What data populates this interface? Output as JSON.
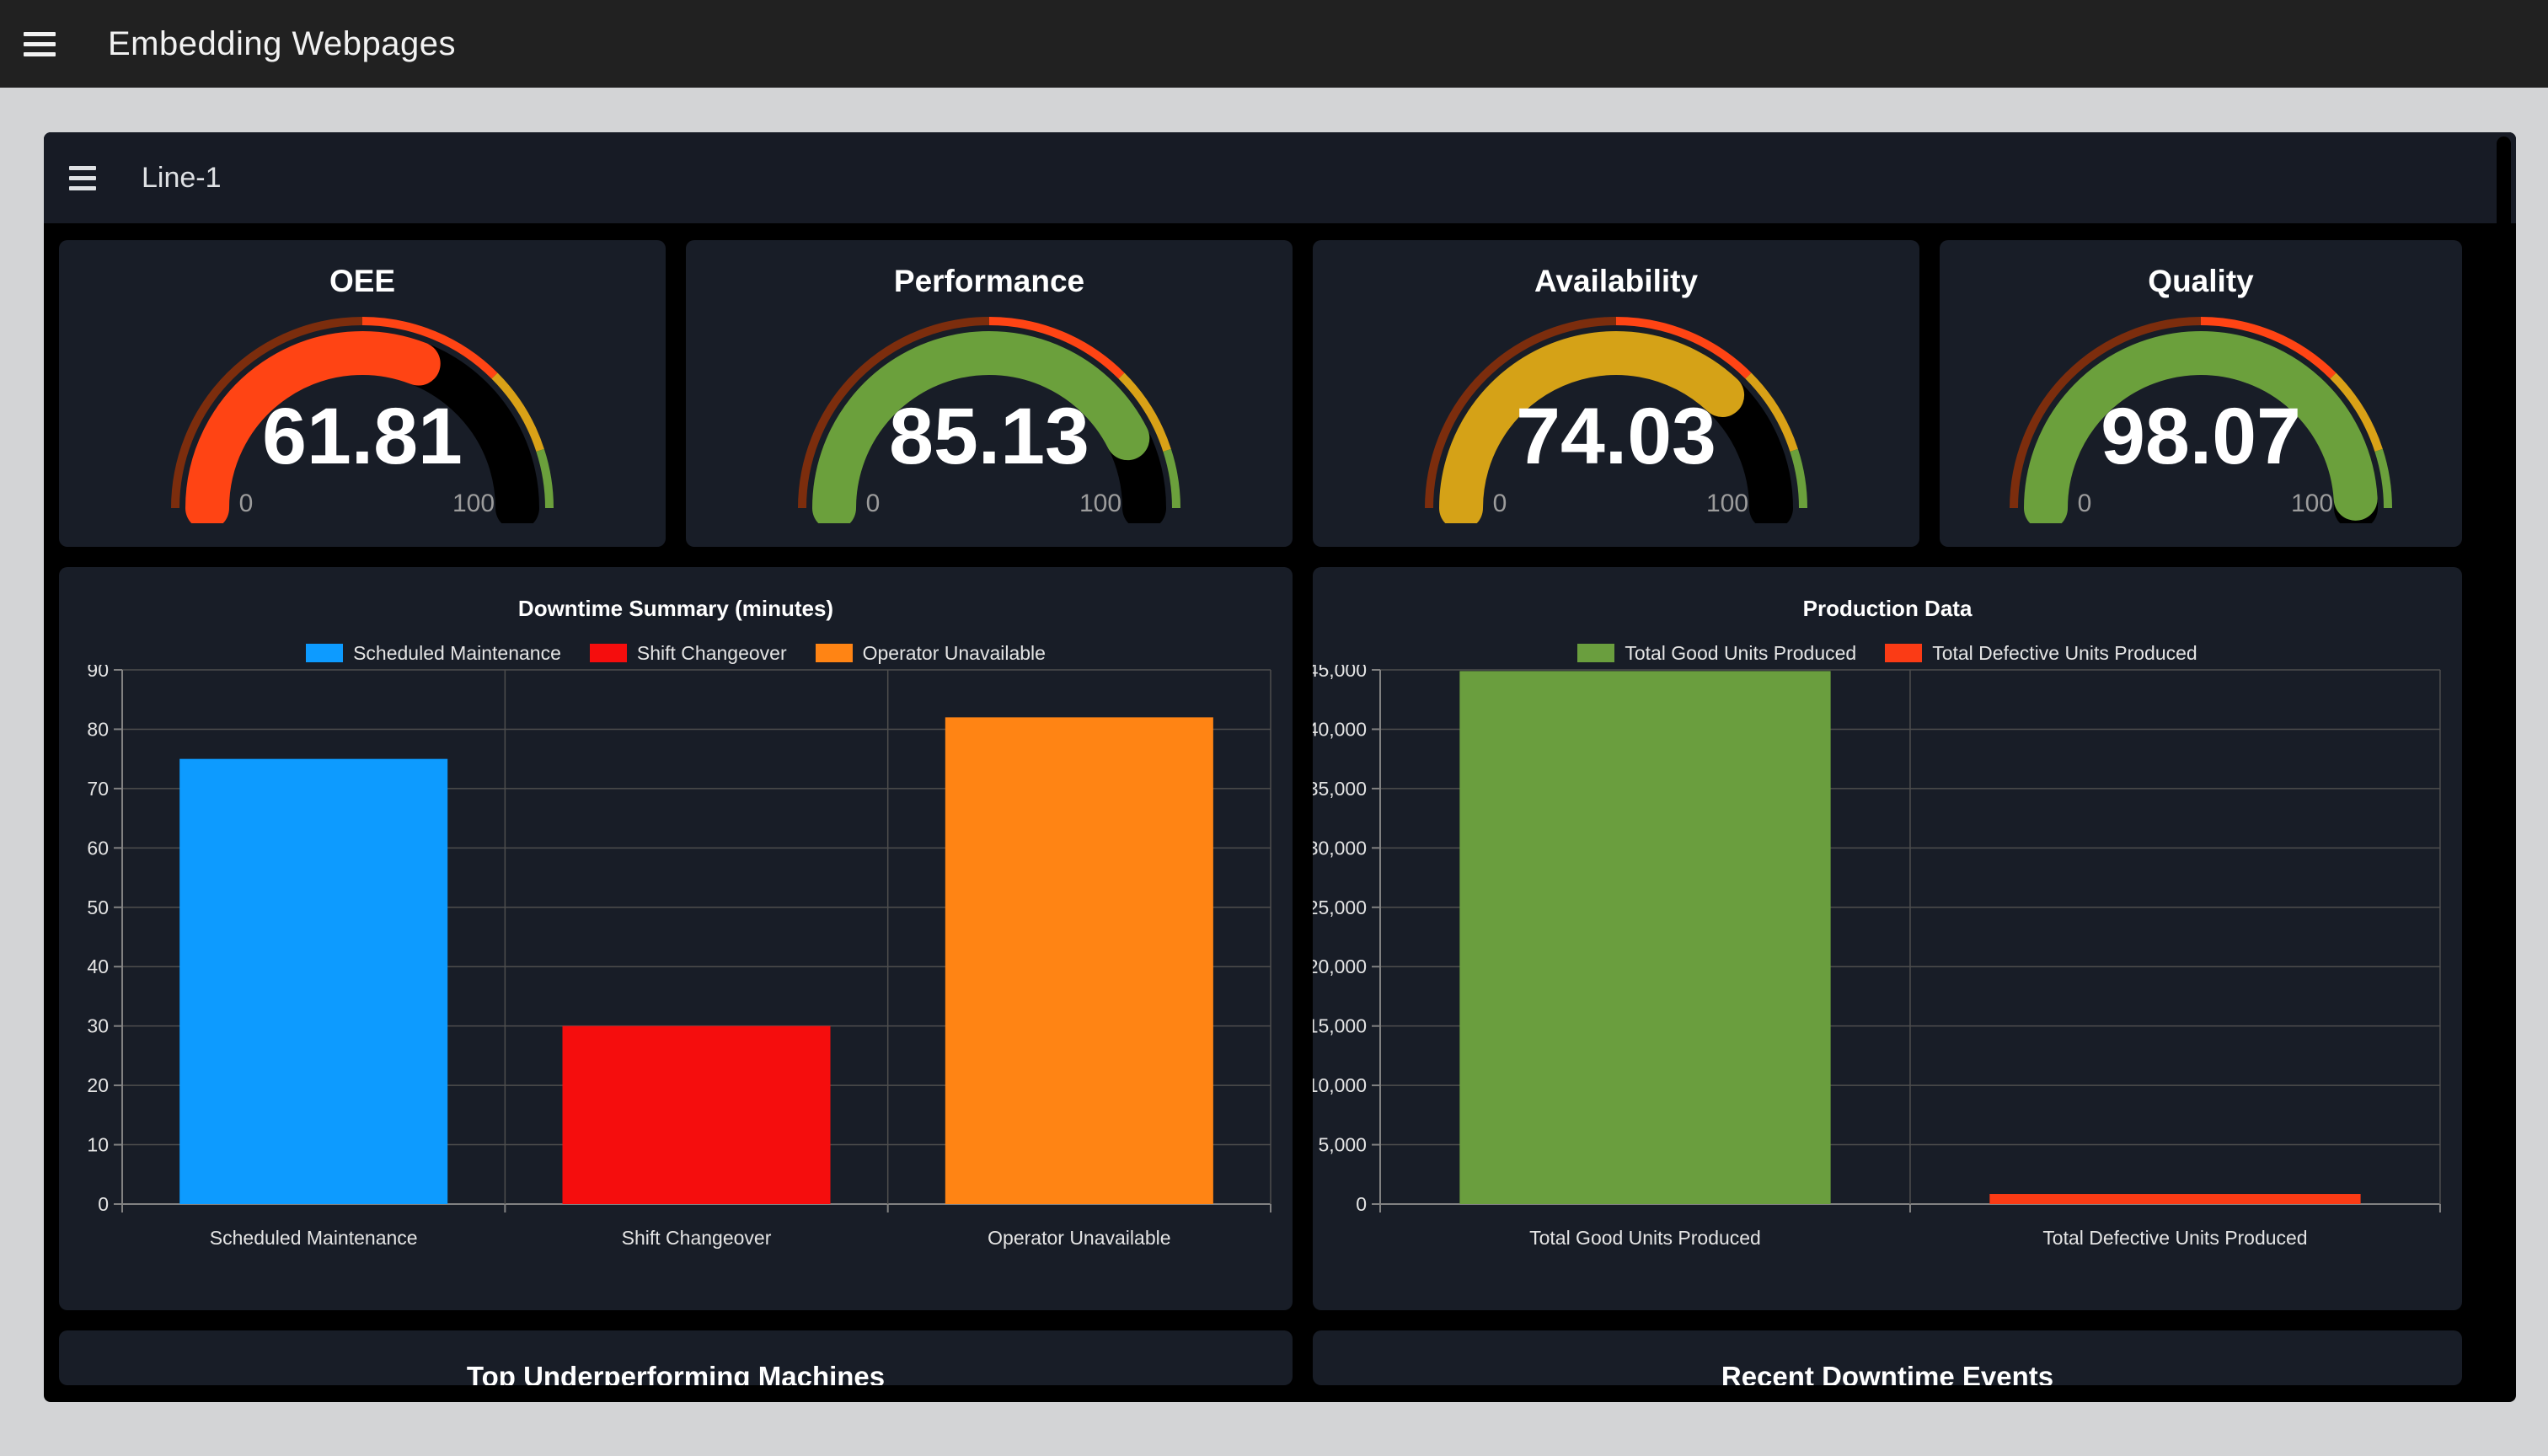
{
  "topbar": {
    "title": "Embedding Webpages"
  },
  "dashboard": {
    "title": "Line-1"
  },
  "gauges": {
    "min_label": "0",
    "max_label": "100",
    "zones": [
      {
        "to": 0.5,
        "color": "#7c2d0d"
      },
      {
        "to": 0.75,
        "color": "#ff4414"
      },
      {
        "to": 0.9,
        "color": "#d9a117"
      },
      {
        "to": 1.0,
        "color": "#6ba03c"
      }
    ],
    "items": [
      {
        "title": "OEE",
        "value": 61.81,
        "display": "61.81",
        "color": "#ff4414"
      },
      {
        "title": "Performance",
        "value": 85.13,
        "display": "85.13",
        "color": "#6ba03c"
      },
      {
        "title": "Availability",
        "value": 74.03,
        "display": "74.03",
        "color": "#d5a217"
      },
      {
        "title": "Quality",
        "value": 98.07,
        "display": "98.07",
        "color": "#6ba03c"
      }
    ]
  },
  "chart_data": [
    {
      "type": "bar",
      "title": "Downtime Summary (minutes)",
      "categories": [
        "Scheduled Maintenance",
        "Shift Changeover",
        "Operator Unavailable"
      ],
      "values": [
        75,
        30,
        82
      ],
      "colors": [
        "#0d9bff",
        "#f50d0d",
        "#ff8414"
      ],
      "legend": [
        {
          "label": "Scheduled Maintenance",
          "color": "#0d9bff"
        },
        {
          "label": "Shift Changeover",
          "color": "#f50d0d"
        },
        {
          "label": "Operator Unavailable",
          "color": "#ff8414"
        }
      ],
      "xlabel": "",
      "ylabel": "",
      "ylim": [
        0,
        90
      ],
      "ytick_step": 10,
      "ytick_format": "plain",
      "grid": true,
      "legend_position": "top",
      "left_margin": 75
    },
    {
      "type": "bar",
      "title": "Production Data",
      "categories": [
        "Total Good Units Produced",
        "Total Defective Units Produced"
      ],
      "values": [
        44900,
        850
      ],
      "colors": [
        "#6a9e3e",
        "#fb3b15"
      ],
      "legend": [
        {
          "label": "Total Good Units Produced",
          "color": "#6a9e3e"
        },
        {
          "label": "Total Defective Units Produced",
          "color": "#fb3b15"
        }
      ],
      "xlabel": "",
      "ylabel": "",
      "ylim": [
        0,
        45000
      ],
      "ytick_step": 5000,
      "ytick_format": "comma",
      "grid": true,
      "legend_position": "top",
      "left_margin": 80
    }
  ],
  "bottom_panels": {
    "left_title": "Top Underperforming Machines",
    "right_title": "Recent Downtime Events"
  },
  "theme": {
    "page_bg": "#d3d4d6",
    "topbar_bg": "#212121",
    "card_bg": "#000000",
    "panel_bg": "#181d27",
    "header_bg": "#171b25",
    "grid_color": "#4e4e4e",
    "axis_color": "#828282",
    "tick_label_color": "#e4e4e4",
    "gauge_minmax_color": "#9c9c9c"
  }
}
